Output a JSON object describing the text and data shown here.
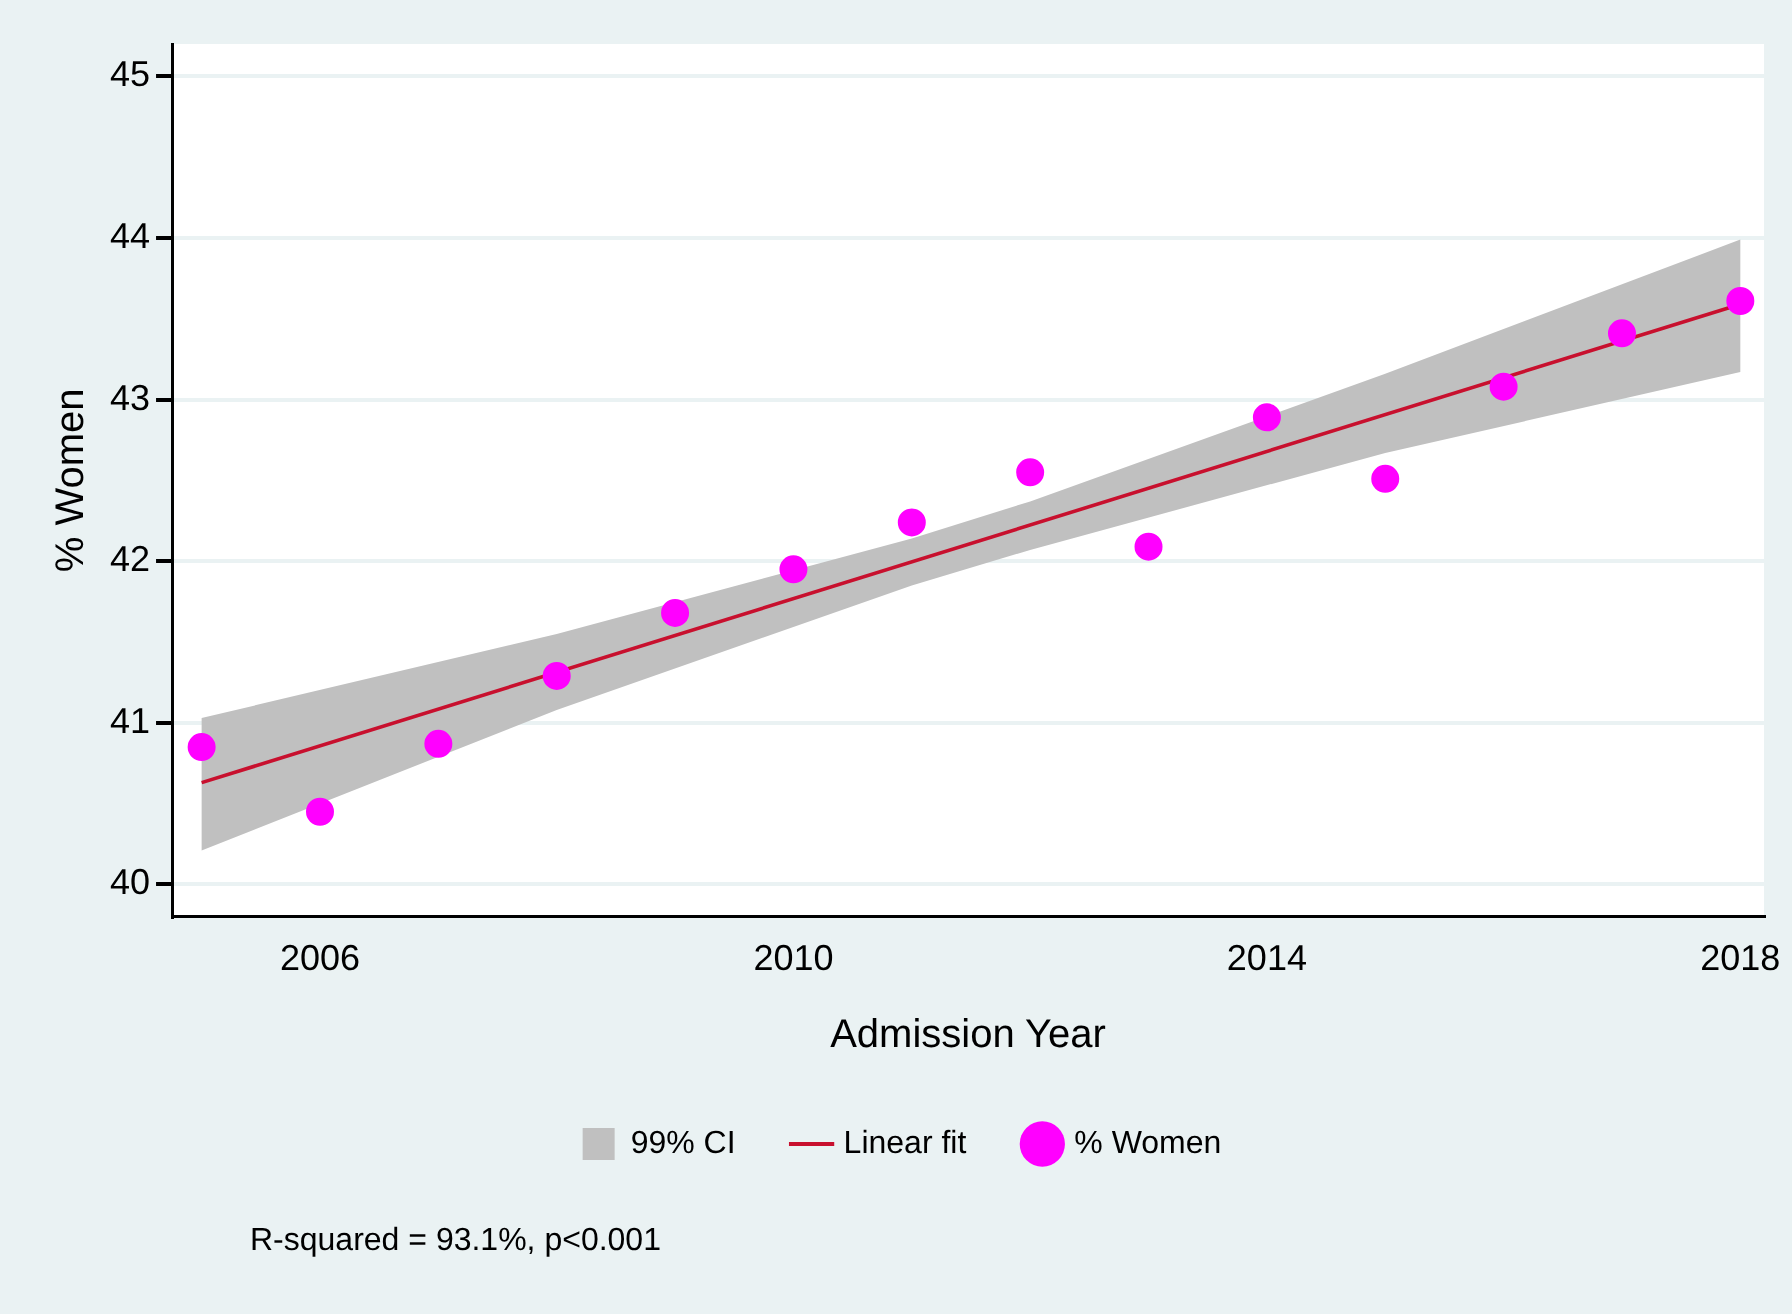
{
  "chart_data": {
    "type": "scatter",
    "xlabel": "Admission Year",
    "ylabel": "% Women",
    "xlim": [
      2004.75,
      2018.2
    ],
    "ylim": [
      39.8,
      45.2
    ],
    "xticks": [
      2006,
      2010,
      2014,
      2018
    ],
    "yticks": [
      40,
      41,
      42,
      43,
      44,
      45
    ],
    "grid": "y",
    "legend": "bottom",
    "series": [
      {
        "name": "99% CI",
        "type": "line",
        "color": "#c0c0c0",
        "x": [
          2005,
          2008,
          2011,
          2012,
          2015,
          2018
        ],
        "values": [
          null,
          null,
          null,
          null,
          null,
          null
        ],
        "lower": [
          40.21,
          41.08,
          41.85,
          42.07,
          42.67,
          43.17
        ],
        "upper": [
          41.03,
          41.55,
          42.14,
          42.37,
          43.16,
          43.99
        ],
        "marker": "none"
      },
      {
        "name": "Linear fit",
        "type": "line",
        "color": "#c8102e",
        "x": [
          2005,
          2018
        ],
        "values": [
          40.63,
          43.59
        ],
        "marker": "none"
      },
      {
        "name": "% Women",
        "color": "#ff00ff",
        "marker": "circle",
        "x": [
          2005,
          2006,
          2007,
          2008,
          2009,
          2010,
          2011,
          2012,
          2013,
          2014,
          2015,
          2016,
          2017,
          2018
        ],
        "values": [
          40.85,
          40.45,
          40.87,
          41.29,
          41.68,
          41.95,
          42.24,
          42.55,
          42.09,
          42.89,
          42.51,
          43.08,
          43.41,
          43.61
        ]
      }
    ],
    "annotations": [
      "R-squared = 93.1%, p<0.001"
    ]
  }
}
